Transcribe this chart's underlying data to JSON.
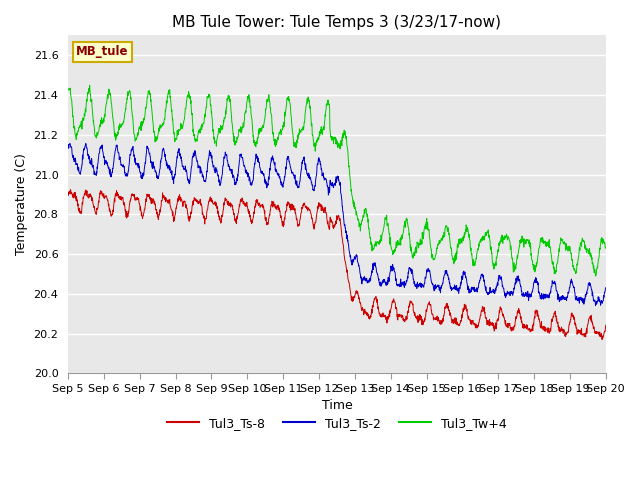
{
  "title": "MB Tule Tower: Tule Temps 3 (3/23/17-now)",
  "xlabel": "Time",
  "ylabel": "Temperature (C)",
  "ylim": [
    20.0,
    21.7
  ],
  "yticks": [
    20.0,
    20.2,
    20.4,
    20.6,
    20.8,
    21.0,
    21.2,
    21.4,
    21.6
  ],
  "bg_color": "#e8e8e8",
  "fig_color": "#ffffff",
  "legend_label": "MB_tule",
  "legend_bg": "#ffffcc",
  "legend_border": "#ccaa00",
  "series_colors": [
    "#cc0000",
    "#0000cc",
    "#00cc00"
  ],
  "series_labels": [
    "Tul3_Ts-8",
    "Tul3_Ts-2",
    "Tul3_Tw+4"
  ],
  "n_points": 1800,
  "title_fontsize": 11,
  "axis_label_fontsize": 9,
  "tick_fontsize": 8
}
